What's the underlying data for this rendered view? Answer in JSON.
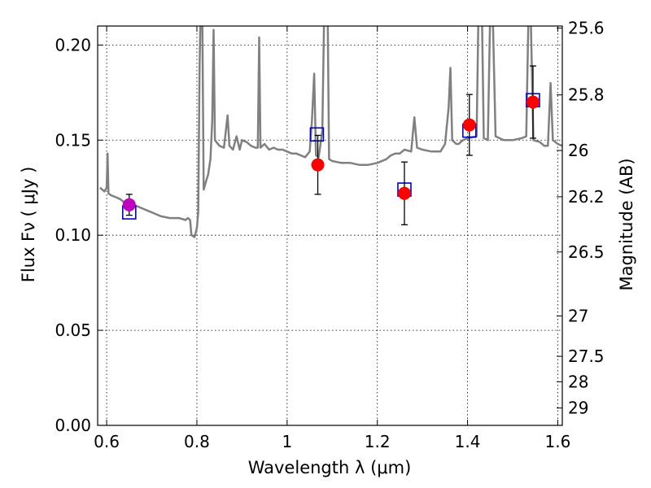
{
  "chart_data": {
    "type": "scatter",
    "xlabel": "Wavelength  λ (μm)",
    "ylabel": "Flux  Fν  ( μJy )",
    "ylabel_right": "Magnitude (AB)",
    "xlim": [
      0.58,
      1.61
    ],
    "ylim": [
      0.0,
      0.21
    ],
    "grid": true,
    "x_ticks": [
      {
        "value": 0.6,
        "label": "0.6"
      },
      {
        "value": 0.8,
        "label": "0.8"
      },
      {
        "value": 1.0,
        "label": "1"
      },
      {
        "value": 1.2,
        "label": "1.2"
      },
      {
        "value": 1.4,
        "label": "1.4"
      },
      {
        "value": 1.6,
        "label": "1.6"
      }
    ],
    "y_ticks": [
      {
        "value": 0.0,
        "label": "0.00"
      },
      {
        "value": 0.05,
        "label": "0.05"
      },
      {
        "value": 0.1,
        "label": "0.10"
      },
      {
        "value": 0.15,
        "label": "0.15"
      },
      {
        "value": 0.2,
        "label": "0.20"
      }
    ],
    "right_ticks": [
      {
        "value": 25.6,
        "label": "25.6"
      },
      {
        "value": 25.8,
        "label": "25.8"
      },
      {
        "value": 26.0,
        "label": "26"
      },
      {
        "value": 26.2,
        "label": "26.2"
      },
      {
        "value": 26.5,
        "label": "26.5"
      },
      {
        "value": 27.0,
        "label": "27"
      },
      {
        "value": 27.5,
        "label": "27.5"
      },
      {
        "value": 28.0,
        "label": "28"
      },
      {
        "value": 29.0,
        "label": "29"
      }
    ],
    "model_spectrum": {
      "color": "#808080",
      "points": [
        [
          0.585,
          0.125
        ],
        [
          0.595,
          0.123
        ],
        [
          0.6,
          0.125
        ],
        [
          0.602,
          0.143
        ],
        [
          0.604,
          0.122
        ],
        [
          0.61,
          0.121
        ],
        [
          0.62,
          0.12
        ],
        [
          0.63,
          0.119
        ],
        [
          0.64,
          0.117
        ],
        [
          0.65,
          0.117
        ],
        [
          0.66,
          0.116
        ],
        [
          0.67,
          0.115
        ],
        [
          0.68,
          0.114
        ],
        [
          0.69,
          0.113
        ],
        [
          0.7,
          0.112
        ],
        [
          0.71,
          0.111
        ],
        [
          0.72,
          0.11
        ],
        [
          0.74,
          0.109
        ],
        [
          0.76,
          0.109
        ],
        [
          0.775,
          0.108
        ],
        [
          0.78,
          0.109
        ],
        [
          0.785,
          0.108
        ],
        [
          0.788,
          0.1
        ],
        [
          0.795,
          0.099
        ],
        [
          0.8,
          0.104
        ],
        [
          0.803,
          0.112
        ],
        [
          0.806,
          0.19
        ],
        [
          0.808,
          0.215
        ],
        [
          0.812,
          0.215
        ],
        [
          0.815,
          0.124
        ],
        [
          0.82,
          0.128
        ],
        [
          0.825,
          0.132
        ],
        [
          0.83,
          0.14
        ],
        [
          0.834,
          0.16
        ],
        [
          0.837,
          0.208
        ],
        [
          0.84,
          0.15
        ],
        [
          0.85,
          0.147
        ],
        [
          0.86,
          0.146
        ],
        [
          0.868,
          0.163
        ],
        [
          0.872,
          0.147
        ],
        [
          0.88,
          0.145
        ],
        [
          0.888,
          0.152
        ],
        [
          0.895,
          0.145
        ],
        [
          0.9,
          0.15
        ],
        [
          0.91,
          0.149
        ],
        [
          0.92,
          0.147
        ],
        [
          0.93,
          0.146
        ],
        [
          0.935,
          0.146
        ],
        [
          0.938,
          0.204
        ],
        [
          0.941,
          0.146
        ],
        [
          0.95,
          0.148
        ],
        [
          0.96,
          0.145
        ],
        [
          0.97,
          0.146
        ],
        [
          0.98,
          0.145
        ],
        [
          0.99,
          0.145
        ],
        [
          1.0,
          0.144
        ],
        [
          1.01,
          0.143
        ],
        [
          1.02,
          0.143
        ],
        [
          1.03,
          0.142
        ],
        [
          1.04,
          0.141
        ],
        [
          1.05,
          0.144
        ],
        [
          1.055,
          0.16
        ],
        [
          1.06,
          0.185
        ],
        [
          1.064,
          0.142
        ],
        [
          1.07,
          0.141
        ],
        [
          1.078,
          0.155
        ],
        [
          1.082,
          0.215
        ],
        [
          1.09,
          0.215
        ],
        [
          1.093,
          0.14
        ],
        [
          1.1,
          0.139
        ],
        [
          1.12,
          0.138
        ],
        [
          1.14,
          0.138
        ],
        [
          1.16,
          0.137
        ],
        [
          1.18,
          0.137
        ],
        [
          1.2,
          0.138
        ],
        [
          1.22,
          0.14
        ],
        [
          1.23,
          0.142
        ],
        [
          1.24,
          0.143
        ],
        [
          1.25,
          0.143
        ],
        [
          1.26,
          0.145
        ],
        [
          1.275,
          0.144
        ],
        [
          1.282,
          0.162
        ],
        [
          1.288,
          0.146
        ],
        [
          1.3,
          0.145
        ],
        [
          1.32,
          0.144
        ],
        [
          1.34,
          0.144
        ],
        [
          1.35,
          0.148
        ],
        [
          1.358,
          0.167
        ],
        [
          1.362,
          0.188
        ],
        [
          1.366,
          0.15
        ],
        [
          1.375,
          0.148
        ],
        [
          1.38,
          0.148
        ],
        [
          1.39,
          0.15
        ],
        [
          1.4,
          0.151
        ],
        [
          1.42,
          0.152
        ],
        [
          1.424,
          0.215
        ],
        [
          1.432,
          0.215
        ],
        [
          1.436,
          0.151
        ],
        [
          1.445,
          0.15
        ],
        [
          1.45,
          0.215
        ],
        [
          1.456,
          0.215
        ],
        [
          1.462,
          0.152
        ],
        [
          1.48,
          0.15
        ],
        [
          1.5,
          0.15
        ],
        [
          1.52,
          0.151
        ],
        [
          1.53,
          0.152
        ],
        [
          1.535,
          0.215
        ],
        [
          1.54,
          0.215
        ],
        [
          1.546,
          0.15
        ],
        [
          1.56,
          0.149
        ],
        [
          1.57,
          0.147
        ],
        [
          1.578,
          0.147
        ],
        [
          1.584,
          0.18
        ],
        [
          1.589,
          0.15
        ],
        [
          1.6,
          0.148
        ],
        [
          1.61,
          0.147
        ]
      ]
    },
    "series": [
      {
        "marker": "square-open",
        "color": "#0000cc",
        "points": [
          {
            "x": 0.65,
            "y": 0.112
          },
          {
            "x": 1.066,
            "y": 0.153
          },
          {
            "x": 1.26,
            "y": 0.124
          },
          {
            "x": 1.404,
            "y": 0.155
          },
          {
            "x": 1.545,
            "y": 0.171
          }
        ]
      },
      {
        "marker": "circle-filled",
        "with_error_bars": true,
        "points": [
          {
            "x": 0.65,
            "y": 0.116,
            "yerr": 0.0055,
            "color": "#bf00bf"
          },
          {
            "x": 1.068,
            "y": 0.137,
            "yerr": 0.0155,
            "color": "#ff0000"
          },
          {
            "x": 1.26,
            "y": 0.122,
            "yerr": 0.0165,
            "color": "#ff0000"
          },
          {
            "x": 1.404,
            "y": 0.158,
            "yerr": 0.016,
            "color": "#ff0000"
          },
          {
            "x": 1.545,
            "y": 0.17,
            "yerr": 0.019,
            "color": "#ff0000"
          }
        ]
      }
    ]
  }
}
